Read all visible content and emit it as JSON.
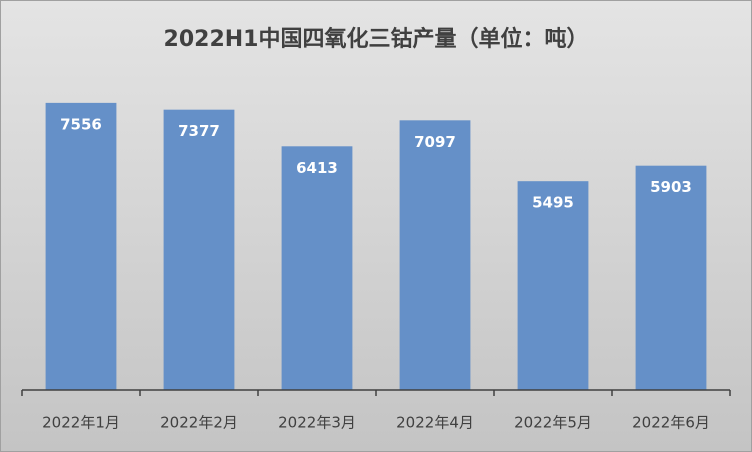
{
  "chart_data": {
    "type": "bar",
    "title": "2022H1中国四氧化三钴产量（单位：吨）",
    "categories": [
      "2022年1月",
      "2022年2月",
      "2022年3月",
      "2022年4月",
      "2022年5月",
      "2022年6月"
    ],
    "values": [
      7556,
      7377,
      6413,
      7097,
      5495,
      5903
    ],
    "color": "#6590c8",
    "ylim": [
      0,
      8000
    ]
  }
}
